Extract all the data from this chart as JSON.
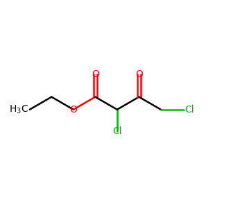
{
  "background_color": "#ffffff",
  "atom_color_C": "#000000",
  "atom_color_O": "#ff0000",
  "atom_color_Cl": "#00bb00",
  "atom_color_H": "#000000",
  "font_size_atom": 10,
  "line_width": 1.8,
  "fig_width": 3.33,
  "fig_height": 3.01,
  "dpi": 100,
  "xlim": [
    -0.5,
    8.5
  ],
  "ylim": [
    0.5,
    5.5
  ]
}
